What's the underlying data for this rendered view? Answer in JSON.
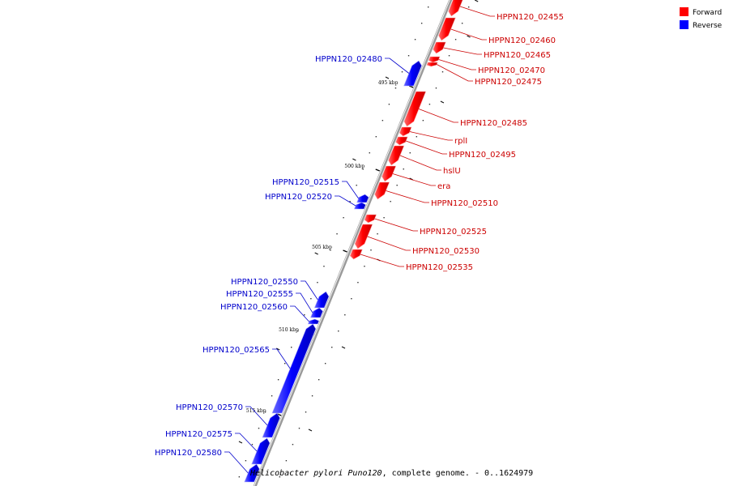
{
  "legend": [
    {
      "label": "Forward",
      "color": "#ff0000"
    },
    {
      "label": "Reverse",
      "color": "#0000ff"
    }
  ],
  "caption": {
    "organism": "Helicobacter pylori Puno120",
    "rest": ", complete genome. - 0..1624979"
  },
  "axis": {
    "ticks": [
      "495 kbp",
      "500 kbp",
      "505 kbp",
      "510 kbp",
      "515 kbp"
    ]
  },
  "genes": [
    {
      "label": "HPPN120_02455",
      "strand": "forward"
    },
    {
      "label": "HPPN120_02460",
      "strand": "forward"
    },
    {
      "label": "HPPN120_02465",
      "strand": "forward"
    },
    {
      "label": "HPPN120_02470",
      "strand": "forward"
    },
    {
      "label": "HPPN120_02475",
      "strand": "forward"
    },
    {
      "label": "HPPN120_02480",
      "strand": "reverse"
    },
    {
      "label": "HPPN120_02485",
      "strand": "forward"
    },
    {
      "label": "rplI",
      "strand": "forward"
    },
    {
      "label": "HPPN120_02495",
      "strand": "forward"
    },
    {
      "label": "hslU",
      "strand": "forward"
    },
    {
      "label": "era",
      "strand": "forward"
    },
    {
      "label": "HPPN120_02510",
      "strand": "forward"
    },
    {
      "label": "HPPN120_02515",
      "strand": "reverse"
    },
    {
      "label": "HPPN120_02520",
      "strand": "reverse"
    },
    {
      "label": "HPPN120_02525",
      "strand": "forward"
    },
    {
      "label": "HPPN120_02530",
      "strand": "forward"
    },
    {
      "label": "HPPN120_02535",
      "strand": "forward"
    },
    {
      "label": "HPPN120_02550",
      "strand": "reverse"
    },
    {
      "label": "HPPN120_02555",
      "strand": "reverse"
    },
    {
      "label": "HPPN120_02560",
      "strand": "reverse"
    },
    {
      "label": "HPPN120_02565",
      "strand": "reverse"
    },
    {
      "label": "HPPN120_02570",
      "strand": "reverse"
    },
    {
      "label": "HPPN120_02575",
      "strand": "reverse"
    },
    {
      "label": "HPPN120_02580",
      "strand": "reverse"
    }
  ]
}
